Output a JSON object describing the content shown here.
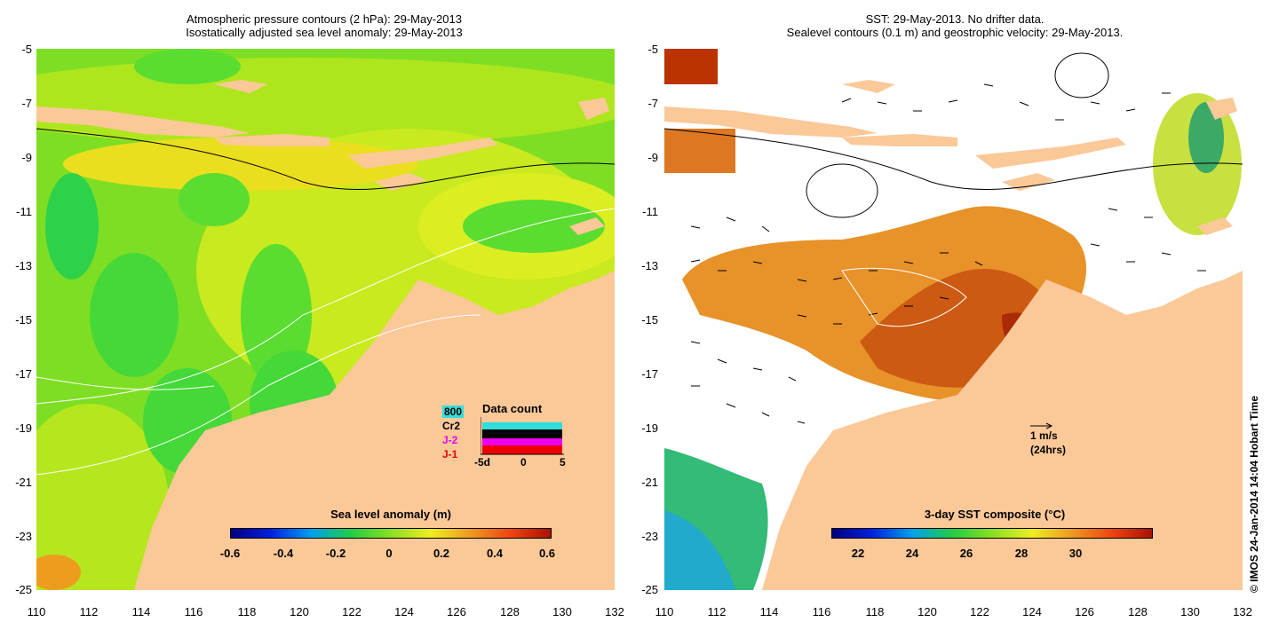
{
  "left_panel": {
    "title_line1": "Atmospheric pressure contours (2 hPa): 29-May-2013",
    "title_line2": "Isostatically adjusted sea level anomaly: 29-May-2013",
    "y_ticks": [
      "-5",
      "-7",
      "-9",
      "-11",
      "-13",
      "-15",
      "-17",
      "-19",
      "-21",
      "-23",
      "-25"
    ],
    "x_ticks": [
      "110",
      "112",
      "114",
      "116",
      "118",
      "120",
      "122",
      "124",
      "126",
      "128",
      "130",
      "132"
    ],
    "colorbar": {
      "title": "Sea level anomaly (m)",
      "labels": [
        "-0.6",
        "-0.4",
        "-0.2",
        "0",
        "0.2",
        "0.4",
        "0.6"
      ]
    },
    "data_count": {
      "title": "Data count",
      "series": [
        {
          "name": "800",
          "color": "#33dddd"
        },
        {
          "name": "Cr2",
          "color": "#000000"
        },
        {
          "name": "J-2",
          "color": "#ee00ee"
        },
        {
          "name": "J-1",
          "color": "#ee0000"
        }
      ],
      "x_labels": [
        "-5d",
        "0",
        "5"
      ]
    }
  },
  "right_panel": {
    "title_line1": "SST: 29-May-2013. No drifter data.",
    "title_line2": "Sealevel contours (0.1 m) and geostrophic velocity: 29-May-2013.",
    "y_ticks": [
      "-5",
      "-7",
      "-9",
      "-11",
      "-13",
      "-15",
      "-17",
      "-19",
      "-21",
      "-23",
      "-25"
    ],
    "x_ticks": [
      "110",
      "112",
      "114",
      "116",
      "118",
      "120",
      "122",
      "124",
      "126",
      "128",
      "130",
      "132"
    ],
    "velocity_scale": {
      "label1": "1 m/s",
      "label2": "(24hrs)"
    },
    "colorbar": {
      "title": "3-day SST composite (°C)",
      "labels": [
        "22",
        "24",
        "26",
        "28",
        "30"
      ]
    }
  },
  "credit": "© IMOS 24-Jan-2014 14:04 Hobart Time",
  "colors": {
    "land": "#fbc898",
    "sla_green": "#55dd22",
    "sla_yellow": "#ddee22",
    "sst_orange": "#dd7711",
    "sst_red": "#bb3300"
  }
}
